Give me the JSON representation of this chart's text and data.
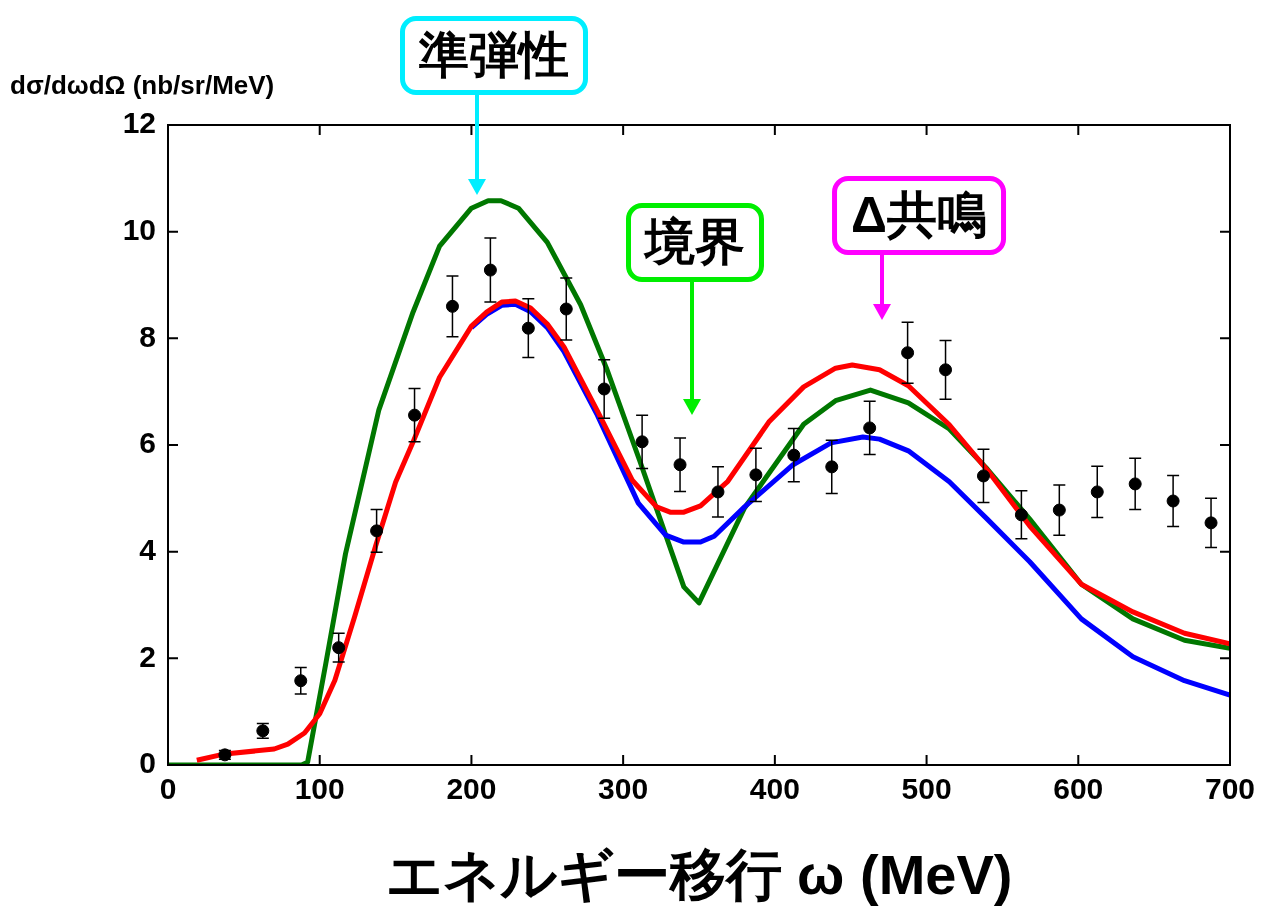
{
  "chart_data": {
    "type": "line",
    "xlabel": "エネルギー移行 ω (MeV)",
    "ylabel": "dσ/dωdΩ (nb/sr/MeV)",
    "xlim": [
      0,
      700
    ],
    "xticks": [
      0,
      100,
      200,
      300,
      400,
      500,
      600,
      700
    ],
    "ylim": [
      0,
      12
    ],
    "yticks": [
      0,
      2,
      4,
      6,
      8,
      10,
      12
    ],
    "grid": false,
    "legend": false,
    "annotations": [
      "準弾性",
      "境界",
      "Δ共鳴"
    ],
    "series": [
      {
        "color": "#007700",
        "marker": "none",
        "x": [
          0,
          88,
          92,
          104,
          117,
          139,
          161.5,
          179,
          200,
          211,
          219.5,
          231,
          250,
          272,
          289,
          311,
          340,
          350,
          380,
          419,
          440,
          463,
          488,
          515,
          540,
          568,
          602,
          636,
          670,
          700
        ],
        "values": [
          0,
          0,
          0.05,
          1.9,
          3.96,
          6.66,
          8.49,
          9.73,
          10.44,
          10.58,
          10.58,
          10.44,
          9.8,
          8.63,
          7.44,
          5.7,
          3.34,
          3.04,
          4.82,
          6.39,
          6.83,
          7.03,
          6.79,
          6.3,
          5.55,
          4.61,
          3.39,
          2.74,
          2.34,
          2.19
        ]
      },
      {
        "color": "#0000ff",
        "marker": "none",
        "x": [
          200,
          210,
          220,
          229,
          239,
          250,
          261,
          283,
          310,
          328,
          340,
          351,
          360,
          380,
          412,
          437,
          458,
          469,
          488,
          515,
          540,
          568,
          602,
          636,
          670,
          700
        ],
        "values": [
          8.2,
          8.45,
          8.62,
          8.64,
          8.5,
          8.2,
          7.75,
          6.56,
          4.91,
          4.31,
          4.18,
          4.18,
          4.29,
          4.84,
          5.63,
          6.04,
          6.15,
          6.11,
          5.89,
          5.31,
          4.61,
          3.81,
          2.74,
          2.03,
          1.58,
          1.31
        ]
      },
      {
        "color": "#ff0000",
        "marker": "none",
        "x": [
          19,
          36,
          70,
          79,
          90,
          100,
          110,
          123,
          137,
          150,
          162,
          179,
          200,
          210,
          220,
          229,
          239,
          250,
          261,
          283,
          306,
          322,
          331,
          340,
          351,
          369,
          396,
          419,
          440,
          451,
          469,
          488,
          515,
          540,
          568,
          602,
          636,
          670,
          700
        ],
        "values": [
          0.09,
          0.2,
          0.3,
          0.39,
          0.6,
          0.96,
          1.59,
          2.78,
          4.12,
          5.3,
          6.09,
          7.27,
          8.23,
          8.49,
          8.68,
          8.7,
          8.57,
          8.27,
          7.84,
          6.64,
          5.34,
          4.84,
          4.74,
          4.74,
          4.86,
          5.32,
          6.43,
          7.09,
          7.44,
          7.5,
          7.41,
          7.11,
          6.38,
          5.53,
          4.48,
          3.39,
          2.87,
          2.47,
          2.27
        ]
      },
      {
        "type": "scatter",
        "color": "#000000",
        "marker": "circle",
        "x": [
          37.5,
          62.5,
          87.5,
          112.5,
          137.5,
          162.5,
          187.5,
          212.5,
          237.5,
          262.5,
          287.5,
          312.5,
          337.5,
          362.5,
          387.5,
          412.5,
          437.5,
          462.5,
          487.5,
          512.5,
          537.5,
          562.5,
          587.5,
          612.5,
          637.5,
          662.5,
          687.5
        ],
        "values": [
          0.19,
          0.64,
          1.58,
          2.2,
          4.39,
          6.56,
          8.6,
          9.28,
          8.19,
          8.55,
          7.05,
          6.06,
          5.63,
          5.12,
          5.44,
          5.81,
          5.59,
          6.32,
          7.73,
          7.41,
          5.42,
          4.69,
          4.78,
          5.12,
          5.27,
          4.95,
          4.54
        ],
        "errors": [
          0.08,
          0.14,
          0.25,
          0.27,
          0.4,
          0.5,
          0.57,
          0.6,
          0.55,
          0.58,
          0.55,
          0.5,
          0.5,
          0.47,
          0.5,
          0.5,
          0.5,
          0.5,
          0.57,
          0.55,
          0.5,
          0.45,
          0.47,
          0.48,
          0.48,
          0.48,
          0.46
        ]
      }
    ]
  }
}
